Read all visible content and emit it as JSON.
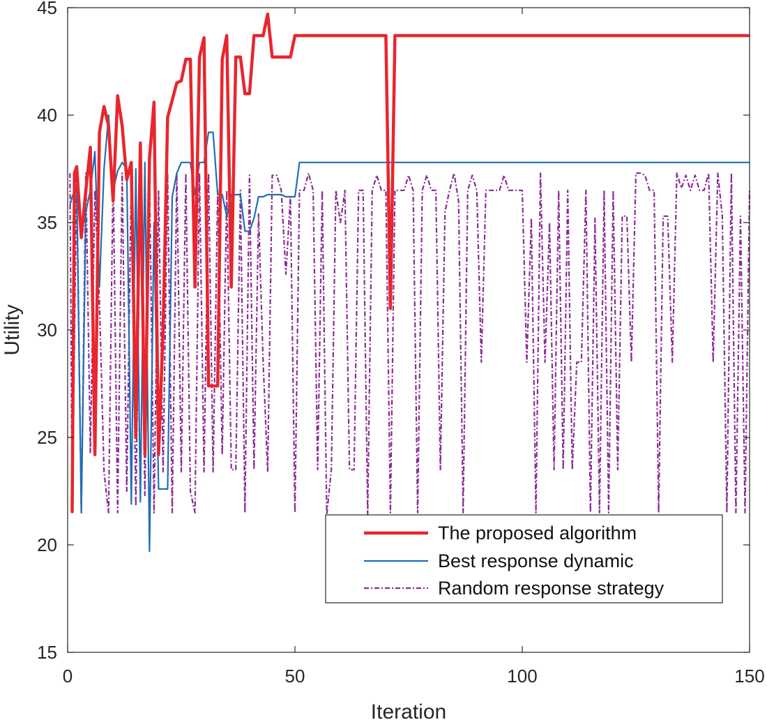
{
  "chart_data": {
    "type": "line",
    "xlabel": "Iteration",
    "ylabel": "Utility",
    "xlim": [
      0,
      150
    ],
    "ylim": [
      15,
      45
    ],
    "xticks": [
      0,
      50,
      100,
      150
    ],
    "yticks": [
      15,
      20,
      25,
      30,
      35,
      40,
      45
    ],
    "grid": false,
    "legend_position": "bottom-right",
    "series": [
      {
        "name": "The proposed algorithm",
        "color": "#e8262d",
        "style": "solid-thick",
        "points": [
          [
            1,
            21.5
          ],
          [
            1.5,
            37.3
          ],
          [
            2,
            37.6
          ],
          [
            3,
            34.3
          ],
          [
            4,
            36.5
          ],
          [
            5,
            38.5
          ],
          [
            6,
            24.2
          ],
          [
            7,
            39.2
          ],
          [
            8,
            40.4
          ],
          [
            9,
            39.5
          ],
          [
            10,
            36.0
          ],
          [
            11,
            40.9
          ],
          [
            12,
            39.5
          ],
          [
            13,
            37.0
          ],
          [
            14,
            37.8
          ],
          [
            15,
            25.0
          ],
          [
            16,
            38.7
          ],
          [
            17,
            24.2
          ],
          [
            18,
            38.0
          ],
          [
            19,
            40.6
          ],
          [
            20,
            24.2
          ],
          [
            21,
            30.0
          ],
          [
            22,
            39.9
          ],
          [
            23,
            40.7
          ],
          [
            24,
            41.5
          ],
          [
            25,
            41.6
          ],
          [
            26,
            42.6
          ],
          [
            27,
            42.6
          ],
          [
            28,
            32.0
          ],
          [
            29,
            42.7
          ],
          [
            30,
            43.6
          ],
          [
            31,
            27.4
          ],
          [
            32,
            27.4
          ],
          [
            33,
            27.4
          ],
          [
            34,
            42.6
          ],
          [
            35,
            43.7
          ],
          [
            36,
            32.0
          ],
          [
            37,
            42.7
          ],
          [
            38,
            42.7
          ],
          [
            39,
            41.0
          ],
          [
            40,
            41.0
          ],
          [
            41,
            43.7
          ],
          [
            42,
            43.7
          ],
          [
            43,
            43.7
          ],
          [
            44,
            44.7
          ],
          [
            45,
            42.7
          ],
          [
            46,
            42.7
          ],
          [
            47,
            42.7
          ],
          [
            48,
            42.7
          ],
          [
            49,
            42.7
          ],
          [
            50,
            43.7
          ],
          [
            70,
            43.7
          ],
          [
            71,
            31.0
          ],
          [
            72,
            43.7
          ],
          [
            150,
            43.7
          ]
        ]
      },
      {
        "name": "Best response dynamic",
        "color": "#1f6fb4",
        "style": "solid",
        "points": [
          [
            0.5,
            35.8
          ],
          [
            1,
            36.2
          ],
          [
            2,
            36.7
          ],
          [
            3,
            21.5
          ],
          [
            4,
            35.5
          ],
          [
            5,
            36.5
          ],
          [
            6,
            38.3
          ],
          [
            7,
            32.0
          ],
          [
            8,
            37.5
          ],
          [
            9,
            40.0
          ],
          [
            10,
            36.5
          ],
          [
            11,
            37.4
          ],
          [
            12,
            37.8
          ],
          [
            13,
            37.5
          ],
          [
            14,
            21.9
          ],
          [
            15,
            37.5
          ],
          [
            16,
            22.0
          ],
          [
            17,
            37.8
          ],
          [
            18,
            19.7
          ],
          [
            19,
            35.0
          ],
          [
            20,
            22.6
          ],
          [
            21,
            22.6
          ],
          [
            22,
            22.6
          ],
          [
            23,
            36.2
          ],
          [
            24,
            37.3
          ],
          [
            25,
            37.8
          ],
          [
            26,
            37.8
          ],
          [
            27,
            37.8
          ],
          [
            28,
            36.3
          ],
          [
            29,
            37.8
          ],
          [
            30,
            37.8
          ],
          [
            31,
            39.2
          ],
          [
            32,
            39.2
          ],
          [
            33,
            36.3
          ],
          [
            34,
            36.3
          ],
          [
            35,
            35.3
          ],
          [
            36,
            36.3
          ],
          [
            37,
            36.3
          ],
          [
            38,
            36.3
          ],
          [
            39,
            34.6
          ],
          [
            40,
            34.6
          ],
          [
            41,
            35.2
          ],
          [
            42,
            36.2
          ],
          [
            43,
            36.2
          ],
          [
            44,
            36.3
          ],
          [
            45,
            36.3
          ],
          [
            46,
            36.3
          ],
          [
            47,
            36.3
          ],
          [
            48,
            36.2
          ],
          [
            49,
            36.2
          ],
          [
            50,
            36.2
          ],
          [
            51,
            37.8
          ],
          [
            150,
            37.8
          ]
        ]
      },
      {
        "name": "Random response strategy",
        "color": "#8b2a94",
        "style": "dashdot",
        "points": [
          [
            0.5,
            37.3
          ],
          [
            1,
            21.5
          ],
          [
            2,
            37.3
          ],
          [
            3,
            21.5
          ],
          [
            4,
            37.3
          ],
          [
            5,
            24.3
          ],
          [
            6,
            36.5
          ],
          [
            7,
            31.3
          ],
          [
            8,
            23.4
          ],
          [
            9,
            21.5
          ],
          [
            10,
            37.3
          ],
          [
            11,
            21.5
          ],
          [
            12,
            37.3
          ],
          [
            13,
            22.5
          ],
          [
            14,
            37.2
          ],
          [
            15,
            21.8
          ],
          [
            16,
            36.3
          ],
          [
            17,
            22.3
          ],
          [
            18,
            37.3
          ],
          [
            19,
            21.5
          ],
          [
            20,
            36.5
          ],
          [
            21,
            23.4
          ],
          [
            22,
            37.3
          ],
          [
            23,
            21.5
          ],
          [
            24,
            37.3
          ],
          [
            25,
            23.4
          ],
          [
            26,
            37.3
          ],
          [
            27,
            22.5
          ],
          [
            28,
            21.5
          ],
          [
            29,
            37.3
          ],
          [
            30,
            23.4
          ],
          [
            31,
            37.3
          ],
          [
            32,
            23.4
          ],
          [
            33,
            36.5
          ],
          [
            34,
            24.2
          ],
          [
            35,
            36.5
          ],
          [
            36,
            23.5
          ],
          [
            37,
            23.5
          ],
          [
            38,
            36.5
          ],
          [
            39,
            21.5
          ],
          [
            40,
            37.2
          ],
          [
            41,
            23.5
          ],
          [
            42,
            35.4
          ],
          [
            43,
            28.5
          ],
          [
            44,
            23.4
          ],
          [
            45,
            37.2
          ],
          [
            46,
            37.2
          ],
          [
            47,
            36.5
          ],
          [
            48,
            32.6
          ],
          [
            49,
            36.2
          ],
          [
            50,
            21.5
          ],
          [
            51,
            36.5
          ],
          [
            52,
            36.5
          ],
          [
            53,
            37.3
          ],
          [
            54,
            36.5
          ],
          [
            55,
            23.5
          ],
          [
            56,
            36.5
          ],
          [
            57,
            21.4
          ],
          [
            58,
            23.5
          ],
          [
            59,
            36.5
          ],
          [
            60,
            35.0
          ],
          [
            61,
            36.5
          ],
          [
            62,
            23.5
          ],
          [
            63,
            23.5
          ],
          [
            64,
            36.5
          ],
          [
            65,
            36.5
          ],
          [
            66,
            21.4
          ],
          [
            67,
            36.5
          ],
          [
            68,
            37.2
          ],
          [
            69,
            36.5
          ],
          [
            70,
            36.5
          ],
          [
            71,
            21.5
          ],
          [
            72,
            36.5
          ],
          [
            73,
            36.5
          ],
          [
            74,
            36.5
          ],
          [
            75,
            37.2
          ],
          [
            76,
            36.5
          ],
          [
            77,
            21.5
          ],
          [
            78,
            36.5
          ],
          [
            79,
            37.2
          ],
          [
            80,
            36.5
          ],
          [
            81,
            36.5
          ],
          [
            82,
            23.5
          ],
          [
            83,
            35.5
          ],
          [
            84,
            36.5
          ],
          [
            85,
            37.3
          ],
          [
            86,
            36.0
          ],
          [
            87,
            21.5
          ],
          [
            88,
            36.5
          ],
          [
            89,
            37.2
          ],
          [
            90,
            36.5
          ],
          [
            91,
            28.5
          ],
          [
            92,
            36.5
          ],
          [
            93,
            36.5
          ],
          [
            94,
            36.5
          ],
          [
            95,
            36.5
          ],
          [
            96,
            37.2
          ],
          [
            97,
            36.5
          ],
          [
            98,
            36.5
          ],
          [
            99,
            36.5
          ],
          [
            100,
            36.5
          ],
          [
            101,
            28.5
          ],
          [
            102,
            35.2
          ],
          [
            103,
            21.5
          ],
          [
            104,
            37.3
          ],
          [
            105,
            28.5
          ],
          [
            106,
            35.0
          ],
          [
            107,
            23.5
          ],
          [
            108,
            36.5
          ],
          [
            109,
            23.5
          ],
          [
            110,
            36.5
          ],
          [
            111,
            23.5
          ],
          [
            112,
            28.5
          ],
          [
            113,
            28.5
          ],
          [
            114,
            36.5
          ],
          [
            115,
            21.5
          ],
          [
            116,
            35.2
          ],
          [
            117,
            21.5
          ],
          [
            118,
            36.5
          ],
          [
            119,
            21.5
          ],
          [
            120,
            36.5
          ],
          [
            121,
            23.5
          ],
          [
            122,
            35.3
          ],
          [
            123,
            35.3
          ],
          [
            124,
            28.5
          ],
          [
            125,
            37.3
          ],
          [
            126,
            37.3
          ],
          [
            127,
            37.2
          ],
          [
            128,
            36.5
          ],
          [
            129,
            36.5
          ],
          [
            130,
            21.5
          ],
          [
            131,
            35.3
          ],
          [
            132,
            35.3
          ],
          [
            133,
            28.5
          ],
          [
            134,
            37.3
          ],
          [
            135,
            36.6
          ],
          [
            136,
            37.2
          ],
          [
            137,
            36.5
          ],
          [
            138,
            37.2
          ],
          [
            139,
            36.5
          ],
          [
            140,
            36.5
          ],
          [
            141,
            37.3
          ],
          [
            142,
            28.5
          ],
          [
            143,
            37.3
          ],
          [
            144,
            35.3
          ],
          [
            145,
            21.5
          ],
          [
            146,
            37.3
          ],
          [
            147,
            21.5
          ],
          [
            148,
            35.3
          ],
          [
            149,
            21.5
          ],
          [
            150,
            36.5
          ]
        ]
      }
    ]
  }
}
